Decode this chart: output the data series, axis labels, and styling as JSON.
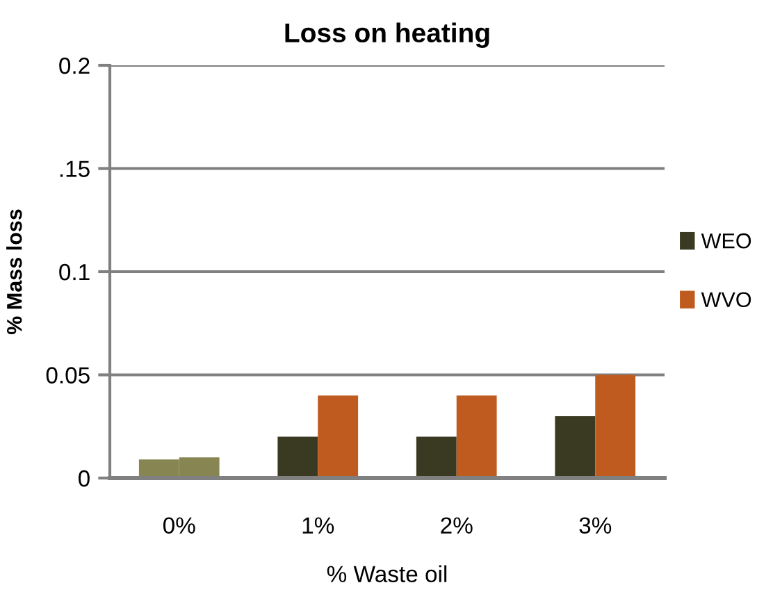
{
  "chart_data": {
    "type": "bar",
    "title": "Loss on heating",
    "xlabel": "% Waste oil",
    "ylabel": "% Mass loss",
    "categories": [
      "0%",
      "1%",
      "2%",
      "3%"
    ],
    "series": [
      {
        "name": "WEO",
        "color": "#3a3a22",
        "colors": [
          "#878652",
          "#3a3a22",
          "#3a3a22",
          "#3a3a22"
        ],
        "values": [
          0.009,
          0.02,
          0.02,
          0.03
        ]
      },
      {
        "name": "WVO",
        "color": "#c05b20",
        "colors": [
          "#878652",
          "#c05b20",
          "#c05b20",
          "#c05b20"
        ],
        "values": [
          0.01,
          0.04,
          0.04,
          0.05
        ]
      }
    ],
    "ylim": [
      0,
      0.2
    ],
    "yticks": [
      0,
      0.05,
      0.1,
      {
        "value": 0.15,
        "label": ".15"
      },
      0.2
    ],
    "grid": "y",
    "legend": "right"
  }
}
